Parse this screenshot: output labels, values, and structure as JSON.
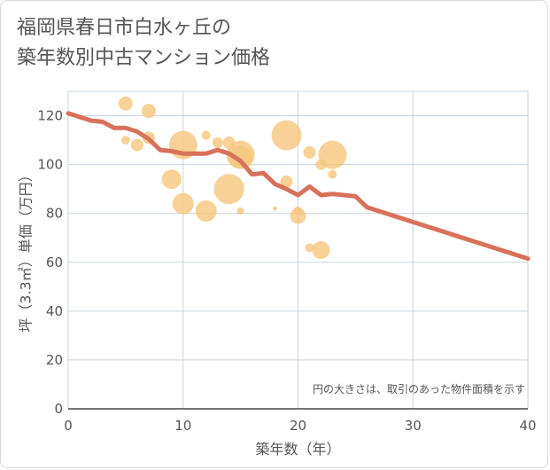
{
  "chart_data": {
    "type": "scatter",
    "title_line1": "福岡県春日市白水ヶ丘の",
    "title_line2": "築年数別中古マンション価格",
    "xlabel": "築年数（年）",
    "ylabel": "坪（3.3㎡）単価（万円）",
    "note": "円の大きさは、取引のあった物件面積を示す",
    "xlim": [
      0,
      40
    ],
    "ylim": [
      0,
      130
    ],
    "xticks": [
      0,
      10,
      20,
      30,
      40
    ],
    "yticks": [
      0,
      20,
      40,
      60,
      80,
      100,
      120
    ],
    "grid": true,
    "colors": {
      "bubble": "#f5c77e",
      "line": "#d9705a"
    },
    "bubbles": [
      {
        "x": 5,
        "y": 125,
        "size": 8
      },
      {
        "x": 7,
        "y": 122,
        "size": 8
      },
      {
        "x": 5,
        "y": 110,
        "size": 5
      },
      {
        "x": 6,
        "y": 108,
        "size": 7
      },
      {
        "x": 7,
        "y": 111,
        "size": 7
      },
      {
        "x": 10,
        "y": 108,
        "size": 16
      },
      {
        "x": 12,
        "y": 112,
        "size": 5
      },
      {
        "x": 13,
        "y": 109,
        "size": 6
      },
      {
        "x": 14,
        "y": 109,
        "size": 7
      },
      {
        "x": 15,
        "y": 104,
        "size": 16
      },
      {
        "x": 15,
        "y": 103,
        "size": 13
      },
      {
        "x": 9,
        "y": 94,
        "size": 11
      },
      {
        "x": 14,
        "y": 90,
        "size": 17
      },
      {
        "x": 10,
        "y": 84,
        "size": 12
      },
      {
        "x": 12,
        "y": 81,
        "size": 12
      },
      {
        "x": 15,
        "y": 81,
        "size": 4
      },
      {
        "x": 18,
        "y": 82,
        "size": 2.5
      },
      {
        "x": 19,
        "y": 112,
        "size": 17
      },
      {
        "x": 19,
        "y": 93,
        "size": 7
      },
      {
        "x": 20,
        "y": 79,
        "size": 9
      },
      {
        "x": 20,
        "y": 81,
        "size": 5
      },
      {
        "x": 21,
        "y": 105,
        "size": 7
      },
      {
        "x": 22,
        "y": 100,
        "size": 6
      },
      {
        "x": 23,
        "y": 104,
        "size": 16
      },
      {
        "x": 23,
        "y": 96,
        "size": 5
      },
      {
        "x": 21,
        "y": 66,
        "size": 5
      },
      {
        "x": 22,
        "y": 65,
        "size": 10
      }
    ],
    "trend": {
      "x": [
        0,
        1,
        2,
        3,
        4,
        5,
        6,
        7,
        8,
        9,
        10,
        11,
        12,
        13,
        14,
        15,
        16,
        17,
        18,
        19,
        20,
        21,
        22,
        23,
        24,
        25,
        26,
        40
      ],
      "y": [
        121,
        119.5,
        118,
        117.5,
        115,
        115,
        113.5,
        110.5,
        106,
        105.5,
        104.5,
        104.5,
        104.5,
        106,
        104.5,
        101.5,
        96,
        96.5,
        92,
        90,
        87.5,
        91,
        87.5,
        88,
        87.5,
        87,
        82.5,
        61.5
      ]
    }
  }
}
